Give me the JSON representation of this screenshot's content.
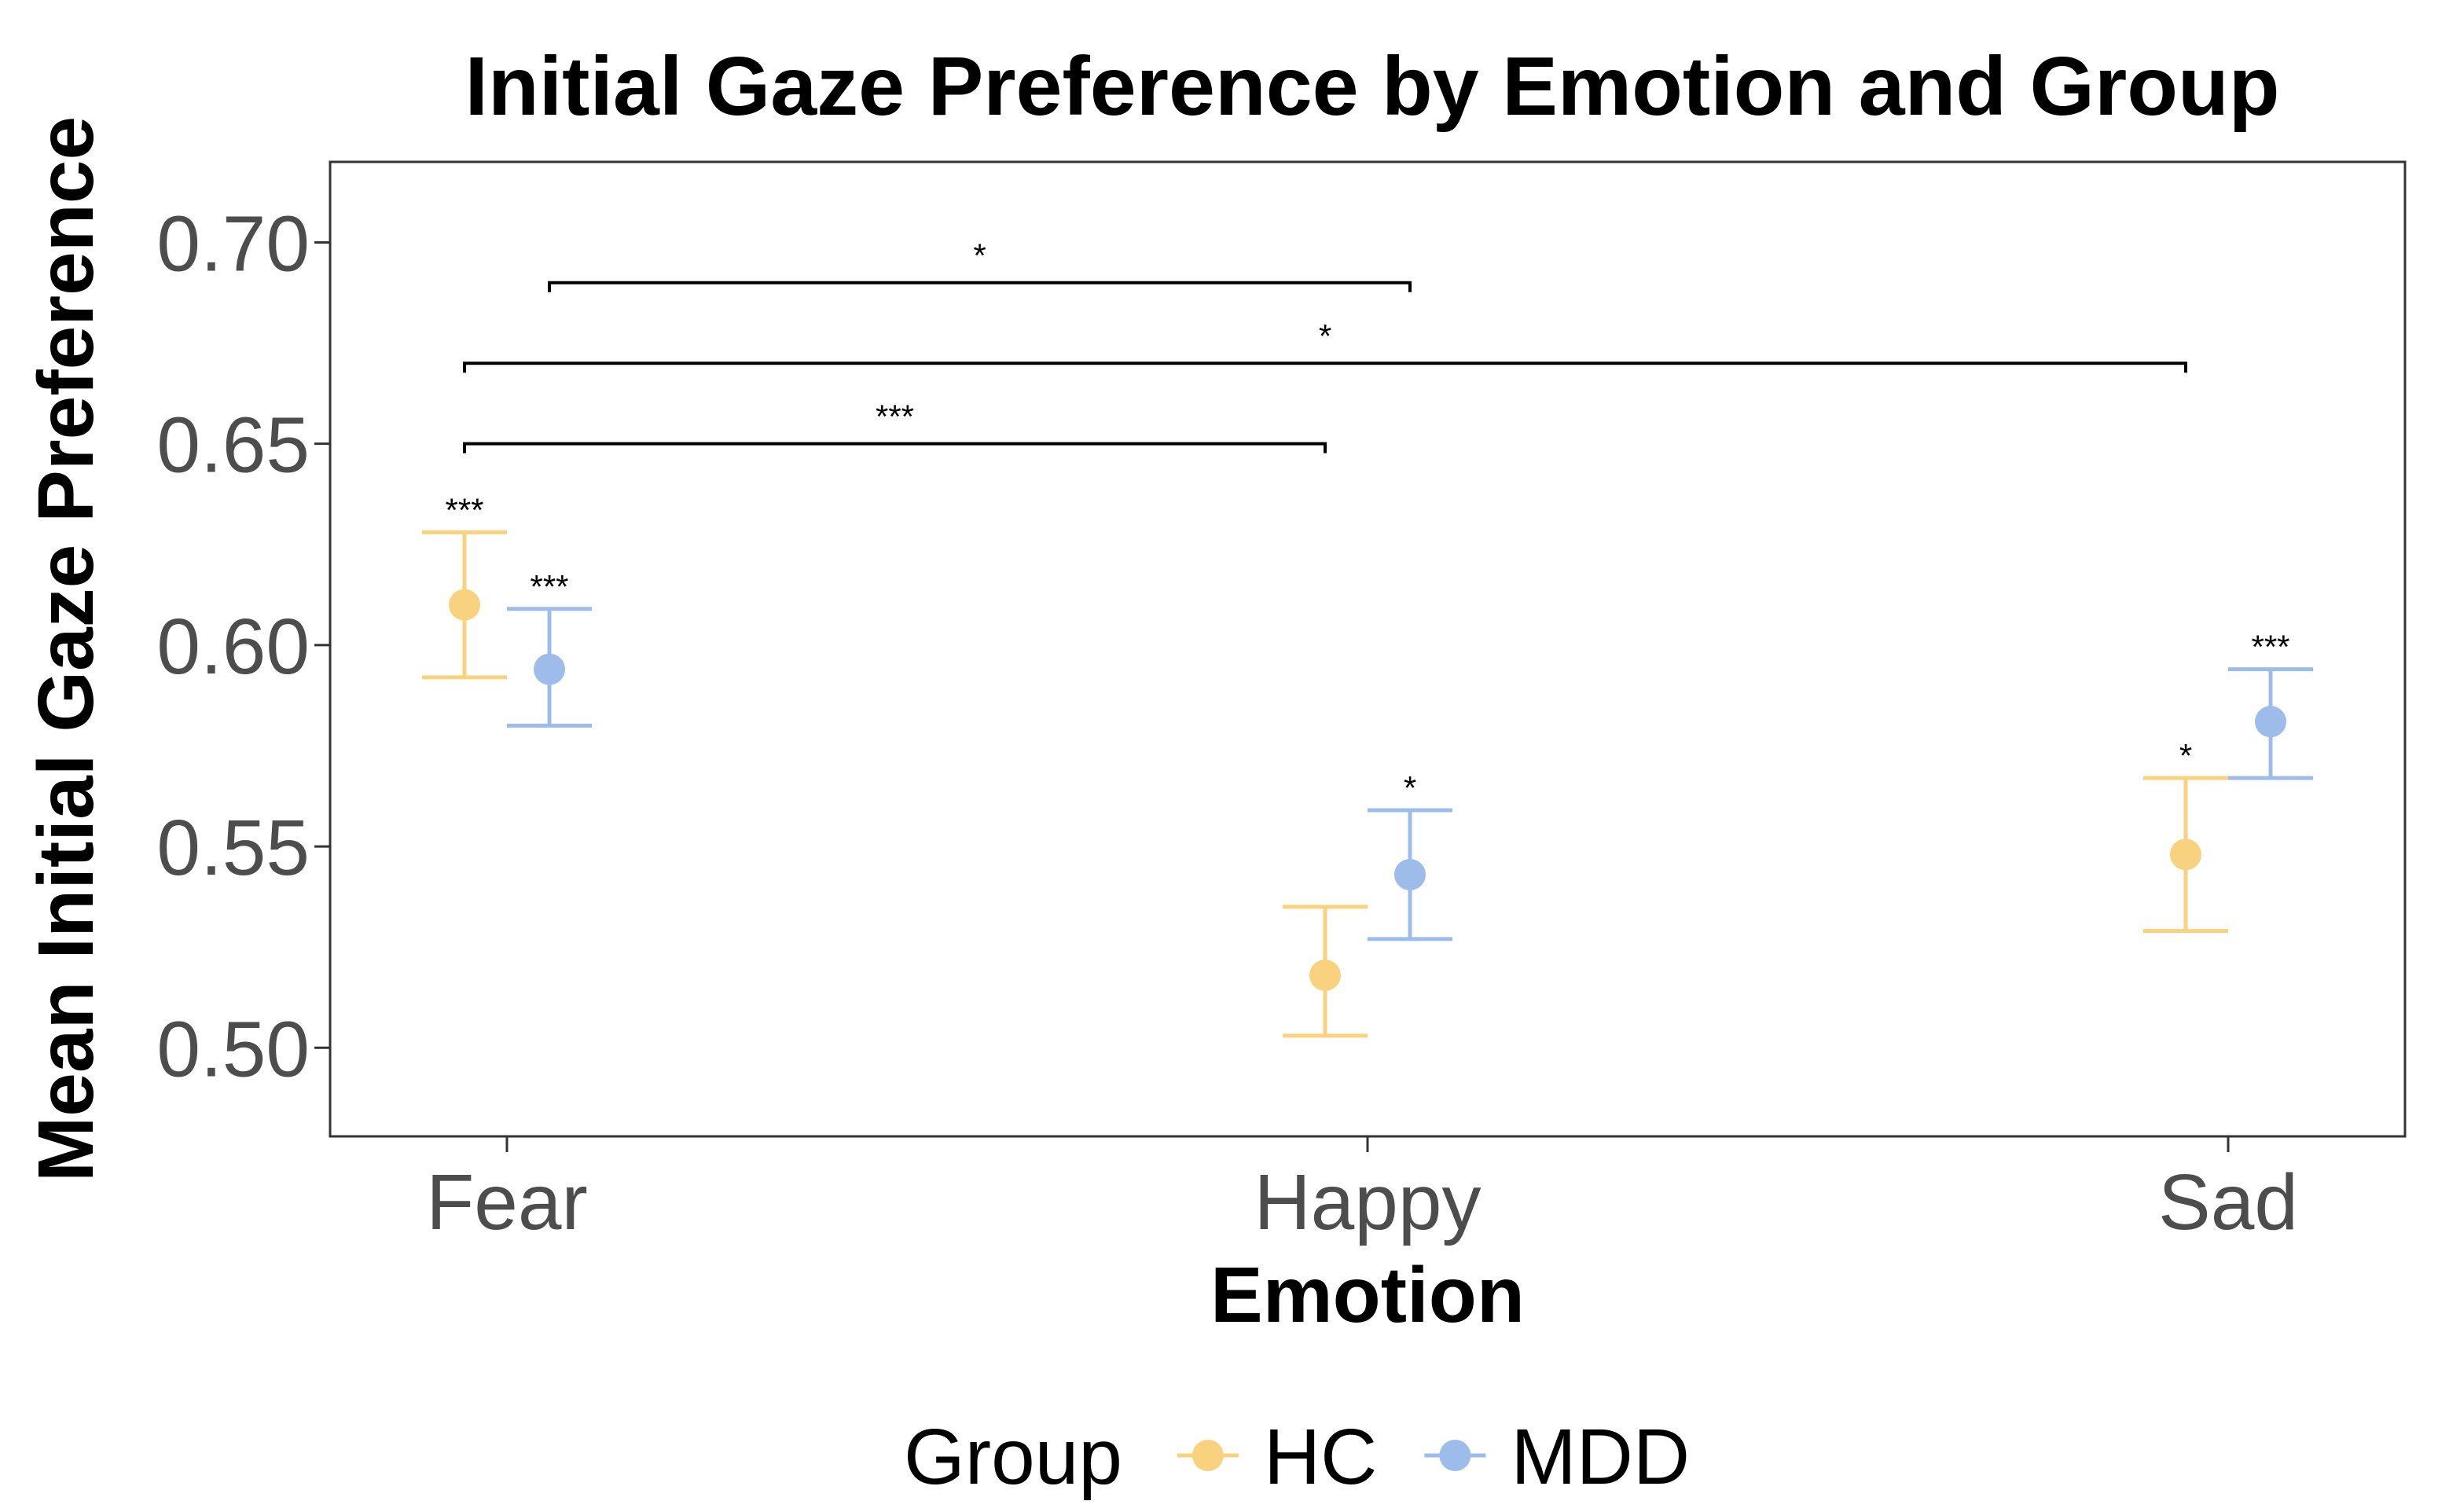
{
  "chart_data": {
    "type": "scatter",
    "title": "Initial Gaze Preference by Emotion and Group",
    "xlabel": "Emotion",
    "ylabel": "Mean Initial Gaze Preference",
    "categories": [
      "Fear",
      "Happy",
      "Sad"
    ],
    "ylim": [
      0.478,
      0.72
    ],
    "yticks": [
      0.5,
      0.55,
      0.6,
      0.65,
      0.7
    ],
    "ytick_labels": [
      "0.50",
      "0.55",
      "0.60",
      "0.65",
      "0.70"
    ],
    "legend_title": "Group",
    "legend_position": "bottom",
    "series": [
      {
        "name": "HC",
        "color": "#F9D27F",
        "values": [
          0.61,
          0.518,
          0.548
        ],
        "lower": [
          0.592,
          0.503,
          0.529
        ],
        "upper": [
          0.628,
          0.535,
          0.567
        ],
        "labels": [
          "***",
          "",
          "*"
        ]
      },
      {
        "name": "MDD",
        "color": "#9DBCEA",
        "values": [
          0.594,
          0.543,
          0.581
        ],
        "lower": [
          0.58,
          0.527,
          0.567
        ],
        "upper": [
          0.609,
          0.559,
          0.594
        ],
        "labels": [
          "***",
          "*",
          "***"
        ]
      }
    ],
    "comparisons": [
      {
        "series": "MDD",
        "from": "Fear",
        "to": "Happy",
        "y": 0.69,
        "label": "*"
      },
      {
        "series": "HC",
        "from": "Fear",
        "to": "Sad",
        "y": 0.67,
        "label": "*"
      },
      {
        "series": "HC",
        "from": "Fear",
        "to": "Happy",
        "y": 0.65,
        "label": "***"
      }
    ]
  }
}
